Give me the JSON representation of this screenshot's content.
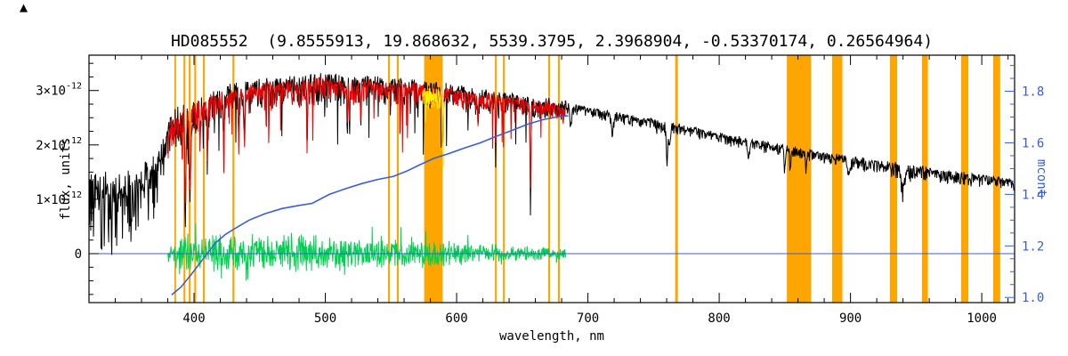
{
  "icons": {
    "triangle": "▲"
  },
  "chart_data": {
    "type": "line",
    "title": "HD085552  (9.8555913, 19.868632, 5539.3795, 2.3968904, -0.53370174, 0.26564964)",
    "xlabel": "wavelength, nm",
    "ylabel_left": "flux, units",
    "ylabel_right": "mcont",
    "x_range": [
      320,
      1025
    ],
    "x_major_ticks": [
      400,
      500,
      600,
      700,
      800,
      900,
      1000
    ],
    "x_minor_step": 20,
    "flux_axis": {
      "range_e12": [
        -0.9,
        3.65
      ],
      "major_ticks_e12": [
        0,
        1,
        2,
        3
      ],
      "labels": [
        "0",
        "1×10^-12",
        "2×10^-12",
        "3×10^-12"
      ],
      "minor_step_e12": 0.25
    },
    "mcont_axis": {
      "range": [
        0.98,
        1.94
      ],
      "major_ticks": [
        1.0,
        1.2,
        1.4,
        1.6,
        1.8
      ],
      "labels": [
        "1.0",
        "1.2",
        "1.4",
        "1.6",
        "1.8"
      ],
      "minor_step": 0.05
    },
    "colors": {
      "background": "#ffffff",
      "frame": "#000000",
      "observed": "#000000",
      "fit": "#ee0000",
      "masked_fit": "#ffee00",
      "residual": "#00d050",
      "mcont": "#3a5fcd",
      "band": "#ffa500"
    },
    "masked_regions_nm": [
      [
        385.0,
        386.3
      ],
      [
        392.0,
        393.4
      ],
      [
        396.0,
        397.4
      ],
      [
        400.2,
        401.6
      ],
      [
        406.8,
        408.2
      ],
      [
        429.3,
        430.8
      ],
      [
        547.8,
        549.2
      ],
      [
        554.5,
        555.9
      ],
      [
        575.3,
        589.3
      ],
      [
        629.2,
        630.6
      ],
      [
        635.3,
        636.7
      ],
      [
        669.8,
        671.2
      ],
      [
        677.2,
        678.6
      ],
      [
        766.5,
        768.5
      ],
      [
        851.5,
        870.0
      ],
      [
        886.0,
        893.8
      ],
      [
        930.0,
        935.5
      ],
      [
        954.5,
        959.0
      ],
      [
        984.3,
        989.7
      ],
      [
        1008.7,
        1014.0
      ]
    ],
    "series": {
      "observed": {
        "name": "observed spectrum",
        "range": [
          320,
          1025
        ],
        "step": 0.34,
        "seed": 42,
        "envelope_e12": [
          [
            320,
            1.4
          ],
          [
            330,
            1.35
          ],
          [
            340,
            1.3
          ],
          [
            350,
            1.42
          ],
          [
            360,
            1.5
          ],
          [
            368,
            1.65
          ],
          [
            374,
            1.9
          ],
          [
            378,
            2.15
          ],
          [
            382,
            2.5
          ],
          [
            386,
            2.62
          ],
          [
            392,
            2.72
          ],
          [
            398,
            2.78
          ],
          [
            404,
            2.82
          ],
          [
            412,
            2.92
          ],
          [
            420,
            3.0
          ],
          [
            430,
            3.06
          ],
          [
            440,
            3.12
          ],
          [
            452,
            3.18
          ],
          [
            465,
            3.21
          ],
          [
            480,
            3.23
          ],
          [
            495,
            3.25
          ],
          [
            510,
            3.25
          ],
          [
            525,
            3.23
          ],
          [
            540,
            3.2
          ],
          [
            555,
            3.18
          ],
          [
            570,
            3.15
          ],
          [
            585,
            3.1
          ],
          [
            600,
            3.06
          ],
          [
            615,
            3.01
          ],
          [
            630,
            2.96
          ],
          [
            645,
            2.91
          ],
          [
            660,
            2.86
          ],
          [
            675,
            2.8
          ],
          [
            690,
            2.73
          ],
          [
            705,
            2.66
          ],
          [
            720,
            2.59
          ],
          [
            735,
            2.52
          ],
          [
            750,
            2.46
          ],
          [
            765,
            2.39
          ],
          [
            780,
            2.31
          ],
          [
            795,
            2.23
          ],
          [
            810,
            2.16
          ],
          [
            825,
            2.09
          ],
          [
            840,
            2.02
          ],
          [
            855,
            1.96
          ],
          [
            870,
            1.89
          ],
          [
            885,
            1.83
          ],
          [
            900,
            1.78
          ],
          [
            915,
            1.72
          ],
          [
            930,
            1.66
          ],
          [
            945,
            1.61
          ],
          [
            960,
            1.56
          ],
          [
            975,
            1.51
          ],
          [
            990,
            1.46
          ],
          [
            1005,
            1.42
          ],
          [
            1015,
            1.39
          ],
          [
            1025,
            1.36
          ]
        ],
        "noise_e12": [
          [
            320,
            0.95
          ],
          [
            345,
            0.95
          ],
          [
            360,
            0.9
          ],
          [
            370,
            0.8
          ],
          [
            376,
            0.6
          ],
          [
            382,
            0.5
          ],
          [
            390,
            0.48
          ],
          [
            400,
            0.45
          ],
          [
            420,
            0.42
          ],
          [
            440,
            0.4
          ],
          [
            460,
            0.38
          ],
          [
            480,
            0.42
          ],
          [
            500,
            0.38
          ],
          [
            520,
            0.36
          ],
          [
            540,
            0.34
          ],
          [
            560,
            0.32
          ],
          [
            580,
            0.32
          ],
          [
            600,
            0.3
          ],
          [
            620,
            0.29
          ],
          [
            640,
            0.27
          ],
          [
            660,
            0.27
          ],
          [
            683,
            0.26
          ],
          [
            686,
            0.15
          ],
          [
            700,
            0.13
          ],
          [
            720,
            0.15
          ],
          [
            740,
            0.13
          ],
          [
            758,
            0.2
          ],
          [
            775,
            0.13
          ],
          [
            800,
            0.13
          ],
          [
            820,
            0.15
          ],
          [
            840,
            0.13
          ],
          [
            860,
            0.13
          ],
          [
            880,
            0.13
          ],
          [
            900,
            0.15
          ],
          [
            920,
            0.17
          ],
          [
            932,
            0.21
          ],
          [
            942,
            0.23
          ],
          [
            952,
            0.19
          ],
          [
            965,
            0.16
          ],
          [
            985,
            0.15
          ],
          [
            1005,
            0.14
          ],
          [
            1025,
            0.14
          ]
        ],
        "forest": {
          "range": [
            382,
            683
          ],
          "prob": 0.05,
          "depth_e12": 1.0
        },
        "lines_e12": [
          [
            393.4,
            1.75,
            0.7
          ],
          [
            396.9,
            1.6,
            0.7
          ],
          [
            404.6,
            0.75,
            0.35
          ],
          [
            410.2,
            0.95,
            0.45
          ],
          [
            422.7,
            0.9,
            0.45
          ],
          [
            434.0,
            0.95,
            0.45
          ],
          [
            438.4,
            0.8,
            0.5
          ],
          [
            486.1,
            1.25,
            0.45
          ],
          [
            516.7,
            0.9,
            0.5
          ],
          [
            518.4,
            0.8,
            0.4
          ],
          [
            527.0,
            0.9,
            0.4
          ],
          [
            558.8,
            0.65,
            0.35
          ],
          [
            589.1,
            1.0,
            0.5
          ],
          [
            589.7,
            0.85,
            0.4
          ],
          [
            616.2,
            0.55,
            0.35
          ],
          [
            629.8,
            0.9,
            0.4
          ],
          [
            656.3,
            1.8,
            0.5
          ],
          [
            686.8,
            0.35,
            0.9
          ],
          [
            718.6,
            0.3,
            1.2
          ],
          [
            760.4,
            0.55,
            1.0
          ],
          [
            762.3,
            0.4,
            0.8
          ],
          [
            822.7,
            0.25,
            1.0
          ],
          [
            849.8,
            0.35,
            0.6
          ],
          [
            854.2,
            0.4,
            0.6
          ],
          [
            866.2,
            0.35,
            0.6
          ],
          [
            898.8,
            0.3,
            1.2
          ],
          [
            940.0,
            0.35,
            2.0
          ]
        ]
      },
      "fit": {
        "name": "fitted model spectrum",
        "range": [
          380,
          683
        ],
        "step": 0.34,
        "seed": 7,
        "envelope_offset_e12": -0.06,
        "noise_scale": 0.85,
        "line_scale": 0.92,
        "forest": {
          "range": [
            382,
            683
          ],
          "prob": 0.045,
          "depth_e12": 0.85
        }
      },
      "masked_fit": {
        "name": "fit inside masked band",
        "range": [
          574,
          590.5
        ],
        "step": 0.3,
        "seed": 13,
        "envelope_offset_e12": -0.1,
        "noise_scale": 0.9,
        "line_scale": 0.9,
        "forest": {
          "range": [
            574,
            590.5
          ],
          "prob": 0.09,
          "depth_e12": 1.2
        }
      },
      "residuals": {
        "name": "fit residuals",
        "range": [
          380,
          683
        ],
        "step": 0.3,
        "seed": 99,
        "amp_e12": [
          [
            380,
            0.14
          ],
          [
            385,
            0.42
          ],
          [
            395,
            0.45
          ],
          [
            410,
            0.42
          ],
          [
            430,
            0.4
          ],
          [
            450,
            0.38
          ],
          [
            470,
            0.42
          ],
          [
            490,
            0.4
          ],
          [
            510,
            0.35
          ],
          [
            530,
            0.3
          ],
          [
            550,
            0.28
          ],
          [
            568,
            0.36
          ],
          [
            585,
            0.28
          ],
          [
            600,
            0.23
          ],
          [
            615,
            0.2
          ],
          [
            630,
            0.19
          ],
          [
            645,
            0.17
          ],
          [
            661,
            0.15
          ],
          [
            683,
            0.13
          ]
        ],
        "spike_prob": 0.05,
        "spike_scale": 1.8
      },
      "mcont_curve": {
        "name": "normalized continuum (mcont)",
        "points": [
          [
            383,
            1.01
          ],
          [
            390,
            1.04
          ],
          [
            398,
            1.09
          ],
          [
            407,
            1.15
          ],
          [
            416,
            1.21
          ],
          [
            424,
            1.245
          ],
          [
            432,
            1.27
          ],
          [
            442,
            1.3
          ],
          [
            454,
            1.325
          ],
          [
            467,
            1.345
          ],
          [
            480,
            1.357
          ],
          [
            490,
            1.365
          ],
          [
            503,
            1.4
          ],
          [
            516,
            1.423
          ],
          [
            528,
            1.442
          ],
          [
            540,
            1.458
          ],
          [
            552,
            1.47
          ],
          [
            562,
            1.49
          ],
          [
            572,
            1.515
          ],
          [
            583,
            1.54
          ],
          [
            594,
            1.558
          ],
          [
            606,
            1.58
          ],
          [
            618,
            1.6
          ],
          [
            630,
            1.625
          ],
          [
            642,
            1.648
          ],
          [
            654,
            1.672
          ],
          [
            666,
            1.69
          ],
          [
            676,
            1.7
          ],
          [
            685,
            1.705
          ]
        ]
      },
      "zero_line": {
        "name": "zero flux baseline",
        "flux_e12": 0,
        "range": [
          320,
          1025
        ]
      }
    }
  }
}
